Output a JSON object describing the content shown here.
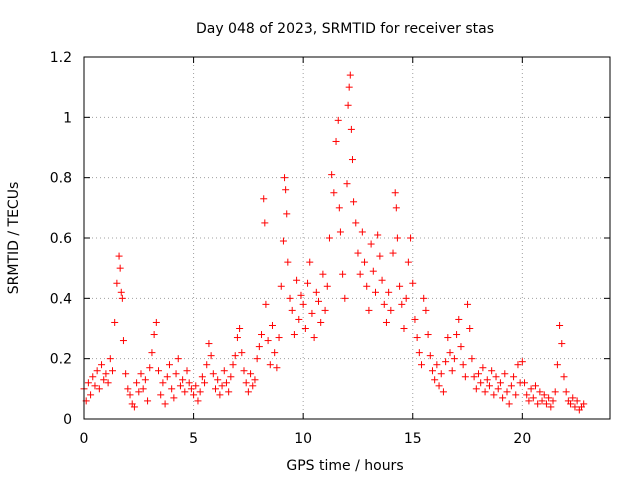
{
  "chart_data": {
    "type": "scatter",
    "title": "Day 048 of 2023, SRMTID for receiver stas",
    "xlabel": "GPS time / hours",
    "ylabel": "SRMTID / TECUs",
    "xlim": [
      0,
      24
    ],
    "ylim": [
      0,
      1.2
    ],
    "x_ticks": [
      0,
      5,
      10,
      15,
      20
    ],
    "x_tick_labels": [
      "0",
      "5",
      "10",
      "15",
      "20"
    ],
    "y_ticks": [
      0,
      0.2,
      0.4,
      0.6,
      0.8,
      1.0,
      1.2
    ],
    "y_tick_labels": [
      "0",
      "0.2",
      "0.4",
      "0.6",
      "0.8",
      "1",
      "1.2"
    ],
    "grid": true,
    "marker": "+",
    "color": "#ff0000",
    "series": [
      {
        "name": "stas",
        "points": [
          [
            0.0,
            0.1
          ],
          [
            0.1,
            0.06
          ],
          [
            0.2,
            0.12
          ],
          [
            0.3,
            0.08
          ],
          [
            0.4,
            0.14
          ],
          [
            0.5,
            0.11
          ],
          [
            0.6,
            0.16
          ],
          [
            0.7,
            0.1
          ],
          [
            0.8,
            0.18
          ],
          [
            0.9,
            0.13
          ],
          [
            1.0,
            0.15
          ],
          [
            1.1,
            0.12
          ],
          [
            1.2,
            0.2
          ],
          [
            1.3,
            0.16
          ],
          [
            1.4,
            0.32
          ],
          [
            1.5,
            0.45
          ],
          [
            1.6,
            0.54
          ],
          [
            1.65,
            0.5
          ],
          [
            1.7,
            0.42
          ],
          [
            1.75,
            0.4
          ],
          [
            1.8,
            0.26
          ],
          [
            1.9,
            0.15
          ],
          [
            2.0,
            0.1
          ],
          [
            2.1,
            0.08
          ],
          [
            2.2,
            0.05
          ],
          [
            2.3,
            0.04
          ],
          [
            2.4,
            0.12
          ],
          [
            2.5,
            0.09
          ],
          [
            2.6,
            0.15
          ],
          [
            2.7,
            0.1
          ],
          [
            2.8,
            0.13
          ],
          [
            2.9,
            0.06
          ],
          [
            3.0,
            0.17
          ],
          [
            3.1,
            0.22
          ],
          [
            3.2,
            0.28
          ],
          [
            3.3,
            0.32
          ],
          [
            3.4,
            0.16
          ],
          [
            3.5,
            0.08
          ],
          [
            3.6,
            0.12
          ],
          [
            3.7,
            0.05
          ],
          [
            3.8,
            0.14
          ],
          [
            3.9,
            0.18
          ],
          [
            4.0,
            0.1
          ],
          [
            4.1,
            0.07
          ],
          [
            4.2,
            0.15
          ],
          [
            4.3,
            0.2
          ],
          [
            4.4,
            0.11
          ],
          [
            4.5,
            0.13
          ],
          [
            4.6,
            0.09
          ],
          [
            4.7,
            0.16
          ],
          [
            4.8,
            0.12
          ],
          [
            4.9,
            0.1
          ],
          [
            5.0,
            0.08
          ],
          [
            5.1,
            0.11
          ],
          [
            5.2,
            0.06
          ],
          [
            5.3,
            0.09
          ],
          [
            5.4,
            0.14
          ],
          [
            5.5,
            0.12
          ],
          [
            5.6,
            0.18
          ],
          [
            5.7,
            0.25
          ],
          [
            5.8,
            0.21
          ],
          [
            5.9,
            0.15
          ],
          [
            6.0,
            0.1
          ],
          [
            6.1,
            0.13
          ],
          [
            6.2,
            0.08
          ],
          [
            6.3,
            0.11
          ],
          [
            6.4,
            0.16
          ],
          [
            6.5,
            0.12
          ],
          [
            6.6,
            0.09
          ],
          [
            6.7,
            0.14
          ],
          [
            6.8,
            0.18
          ],
          [
            6.9,
            0.21
          ],
          [
            7.0,
            0.27
          ],
          [
            7.1,
            0.3
          ],
          [
            7.2,
            0.22
          ],
          [
            7.3,
            0.16
          ],
          [
            7.4,
            0.12
          ],
          [
            7.5,
            0.09
          ],
          [
            7.6,
            0.15
          ],
          [
            7.7,
            0.11
          ],
          [
            7.8,
            0.13
          ],
          [
            7.9,
            0.2
          ],
          [
            8.0,
            0.24
          ],
          [
            8.1,
            0.28
          ],
          [
            8.2,
            0.73
          ],
          [
            8.25,
            0.65
          ],
          [
            8.3,
            0.38
          ],
          [
            8.4,
            0.26
          ],
          [
            8.5,
            0.18
          ],
          [
            8.6,
            0.31
          ],
          [
            8.7,
            0.22
          ],
          [
            8.8,
            0.17
          ],
          [
            8.9,
            0.27
          ],
          [
            9.0,
            0.44
          ],
          [
            9.1,
            0.59
          ],
          [
            9.15,
            0.8
          ],
          [
            9.2,
            0.76
          ],
          [
            9.25,
            0.68
          ],
          [
            9.3,
            0.52
          ],
          [
            9.4,
            0.4
          ],
          [
            9.5,
            0.36
          ],
          [
            9.6,
            0.28
          ],
          [
            9.7,
            0.46
          ],
          [
            9.8,
            0.33
          ],
          [
            9.9,
            0.41
          ],
          [
            10.0,
            0.38
          ],
          [
            10.1,
            0.3
          ],
          [
            10.2,
            0.45
          ],
          [
            10.3,
            0.52
          ],
          [
            10.4,
            0.35
          ],
          [
            10.5,
            0.27
          ],
          [
            10.6,
            0.42
          ],
          [
            10.7,
            0.39
          ],
          [
            10.8,
            0.32
          ],
          [
            10.9,
            0.48
          ],
          [
            11.0,
            0.36
          ],
          [
            11.1,
            0.44
          ],
          [
            11.2,
            0.6
          ],
          [
            11.3,
            0.81
          ],
          [
            11.4,
            0.75
          ],
          [
            11.5,
            0.92
          ],
          [
            11.6,
            0.99
          ],
          [
            11.65,
            0.7
          ],
          [
            11.7,
            0.62
          ],
          [
            11.8,
            0.48
          ],
          [
            11.9,
            0.4
          ],
          [
            12.0,
            0.78
          ],
          [
            12.05,
            1.04
          ],
          [
            12.1,
            1.1
          ],
          [
            12.15,
            1.14
          ],
          [
            12.2,
            0.96
          ],
          [
            12.25,
            0.86
          ],
          [
            12.3,
            0.72
          ],
          [
            12.4,
            0.65
          ],
          [
            12.5,
            0.55
          ],
          [
            12.6,
            0.48
          ],
          [
            12.7,
            0.62
          ],
          [
            12.8,
            0.52
          ],
          [
            12.9,
            0.44
          ],
          [
            13.0,
            0.36
          ],
          [
            13.1,
            0.58
          ],
          [
            13.2,
            0.49
          ],
          [
            13.3,
            0.42
          ],
          [
            13.4,
            0.61
          ],
          [
            13.5,
            0.54
          ],
          [
            13.6,
            0.46
          ],
          [
            13.7,
            0.38
          ],
          [
            13.8,
            0.32
          ],
          [
            13.9,
            0.42
          ],
          [
            14.0,
            0.36
          ],
          [
            14.1,
            0.55
          ],
          [
            14.2,
            0.75
          ],
          [
            14.25,
            0.7
          ],
          [
            14.3,
            0.6
          ],
          [
            14.4,
            0.44
          ],
          [
            14.5,
            0.38
          ],
          [
            14.6,
            0.3
          ],
          [
            14.7,
            0.4
          ],
          [
            14.8,
            0.52
          ],
          [
            14.9,
            0.6
          ],
          [
            15.0,
            0.45
          ],
          [
            15.1,
            0.33
          ],
          [
            15.2,
            0.27
          ],
          [
            15.3,
            0.22
          ],
          [
            15.4,
            0.18
          ],
          [
            15.5,
            0.4
          ],
          [
            15.6,
            0.36
          ],
          [
            15.7,
            0.28
          ],
          [
            15.8,
            0.21
          ],
          [
            15.9,
            0.16
          ],
          [
            16.0,
            0.13
          ],
          [
            16.1,
            0.18
          ],
          [
            16.2,
            0.11
          ],
          [
            16.3,
            0.15
          ],
          [
            16.4,
            0.09
          ],
          [
            16.5,
            0.19
          ],
          [
            16.6,
            0.27
          ],
          [
            16.7,
            0.22
          ],
          [
            16.8,
            0.16
          ],
          [
            16.9,
            0.2
          ],
          [
            17.0,
            0.28
          ],
          [
            17.1,
            0.33
          ],
          [
            17.2,
            0.24
          ],
          [
            17.3,
            0.18
          ],
          [
            17.4,
            0.14
          ],
          [
            17.5,
            0.38
          ],
          [
            17.6,
            0.3
          ],
          [
            17.7,
            0.2
          ],
          [
            17.8,
            0.14
          ],
          [
            17.9,
            0.1
          ],
          [
            18.0,
            0.15
          ],
          [
            18.1,
            0.12
          ],
          [
            18.2,
            0.17
          ],
          [
            18.3,
            0.09
          ],
          [
            18.4,
            0.13
          ],
          [
            18.5,
            0.11
          ],
          [
            18.6,
            0.16
          ],
          [
            18.7,
            0.08
          ],
          [
            18.8,
            0.14
          ],
          [
            18.9,
            0.1
          ],
          [
            19.0,
            0.12
          ],
          [
            19.1,
            0.07
          ],
          [
            19.2,
            0.15
          ],
          [
            19.3,
            0.09
          ],
          [
            19.4,
            0.05
          ],
          [
            19.5,
            0.11
          ],
          [
            19.6,
            0.14
          ],
          [
            19.7,
            0.08
          ],
          [
            19.8,
            0.18
          ],
          [
            19.9,
            0.12
          ],
          [
            20.0,
            0.19
          ],
          [
            20.1,
            0.12
          ],
          [
            20.2,
            0.08
          ],
          [
            20.3,
            0.06
          ],
          [
            20.4,
            0.1
          ],
          [
            20.5,
            0.07
          ],
          [
            20.6,
            0.11
          ],
          [
            20.7,
            0.05
          ],
          [
            20.8,
            0.09
          ],
          [
            20.9,
            0.06
          ],
          [
            21.0,
            0.08
          ],
          [
            21.1,
            0.05
          ],
          [
            21.2,
            0.07
          ],
          [
            21.3,
            0.04
          ],
          [
            21.4,
            0.06
          ],
          [
            21.5,
            0.09
          ],
          [
            21.6,
            0.18
          ],
          [
            21.7,
            0.31
          ],
          [
            21.8,
            0.25
          ],
          [
            21.9,
            0.14
          ],
          [
            22.0,
            0.09
          ],
          [
            22.1,
            0.06
          ],
          [
            22.2,
            0.05
          ],
          [
            22.3,
            0.07
          ],
          [
            22.4,
            0.04
          ],
          [
            22.5,
            0.06
          ],
          [
            22.6,
            0.03
          ],
          [
            22.7,
            0.04
          ],
          [
            22.8,
            0.05
          ]
        ]
      }
    ]
  }
}
